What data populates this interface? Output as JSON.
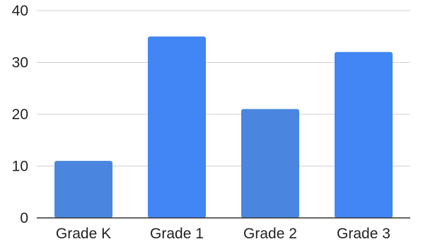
{
  "chart_data": {
    "type": "bar",
    "title": "",
    "xlabel": "",
    "ylabel": "",
    "categories": [
      "Grade K",
      "Grade 1",
      "Grade 2",
      "Grade 3"
    ],
    "values": [
      11,
      35,
      21,
      32
    ],
    "ylim": [
      0,
      40
    ],
    "yticks": [
      0,
      10,
      20,
      30,
      40
    ],
    "ytick_labels": [
      "0",
      "10",
      "20",
      "30",
      "40"
    ],
    "grid": true,
    "legend": "none",
    "bar_colors": [
      "#4a86e0",
      "#4285f4",
      "#4a86e0",
      "#4285f4"
    ]
  }
}
